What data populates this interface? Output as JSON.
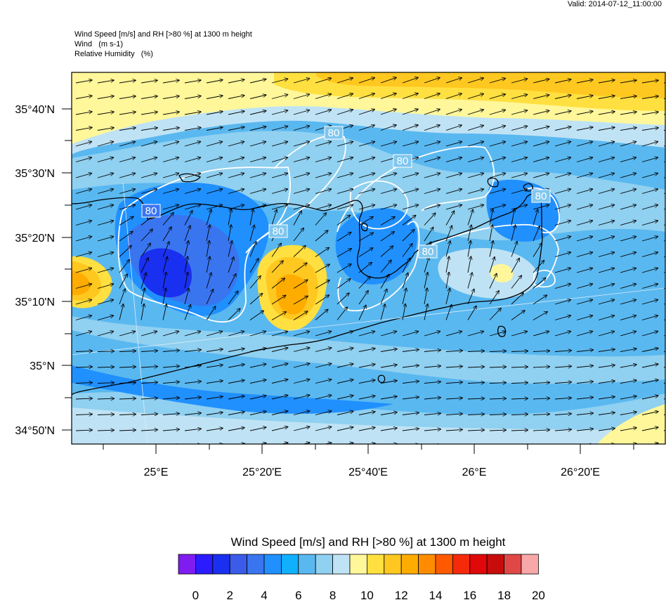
{
  "header": {
    "valid": "Valid: 2014-07-12_11:00:00",
    "title_line1": "Wind Speed [m/s] and RH [>80 %] at 1300 m height",
    "title_line2": "Wind   (m s-1)",
    "title_line3": "Relative Humidity   (%)"
  },
  "map": {
    "lat_labels": [
      "35°40'N",
      "35°30'N",
      "35°20'N",
      "35°10'N",
      "35°N",
      "34°50'N"
    ],
    "lon_labels": [
      "25°E",
      "25°20'E",
      "25°40'E",
      "26°E",
      "26°20'E"
    ],
    "contour_labels": [
      "80",
      "80",
      "80",
      "80",
      "80",
      "80"
    ],
    "wind_direction": "east-north-east"
  },
  "colorbar": {
    "title": "Wind Speed [m/s] and RH [>80 %] at 1300 m height",
    "colors": [
      "#7f1cf0",
      "#2a1cff",
      "#1a30f0",
      "#3a5ce8",
      "#3a75f0",
      "#2090ff",
      "#10b0ff",
      "#5ab8f0",
      "#90d0f0",
      "#bfe3f5",
      "#fff79a",
      "#ffe040",
      "#ffc820",
      "#ffac00",
      "#ff8c00",
      "#ff5a00",
      "#f52a0a",
      "#e00808",
      "#c80c0c",
      "#e04848",
      "#f8a8a8"
    ],
    "tick_labels": [
      "0",
      "2",
      "4",
      "6",
      "8",
      "10",
      "12",
      "14",
      "16",
      "18",
      "20"
    ]
  }
}
